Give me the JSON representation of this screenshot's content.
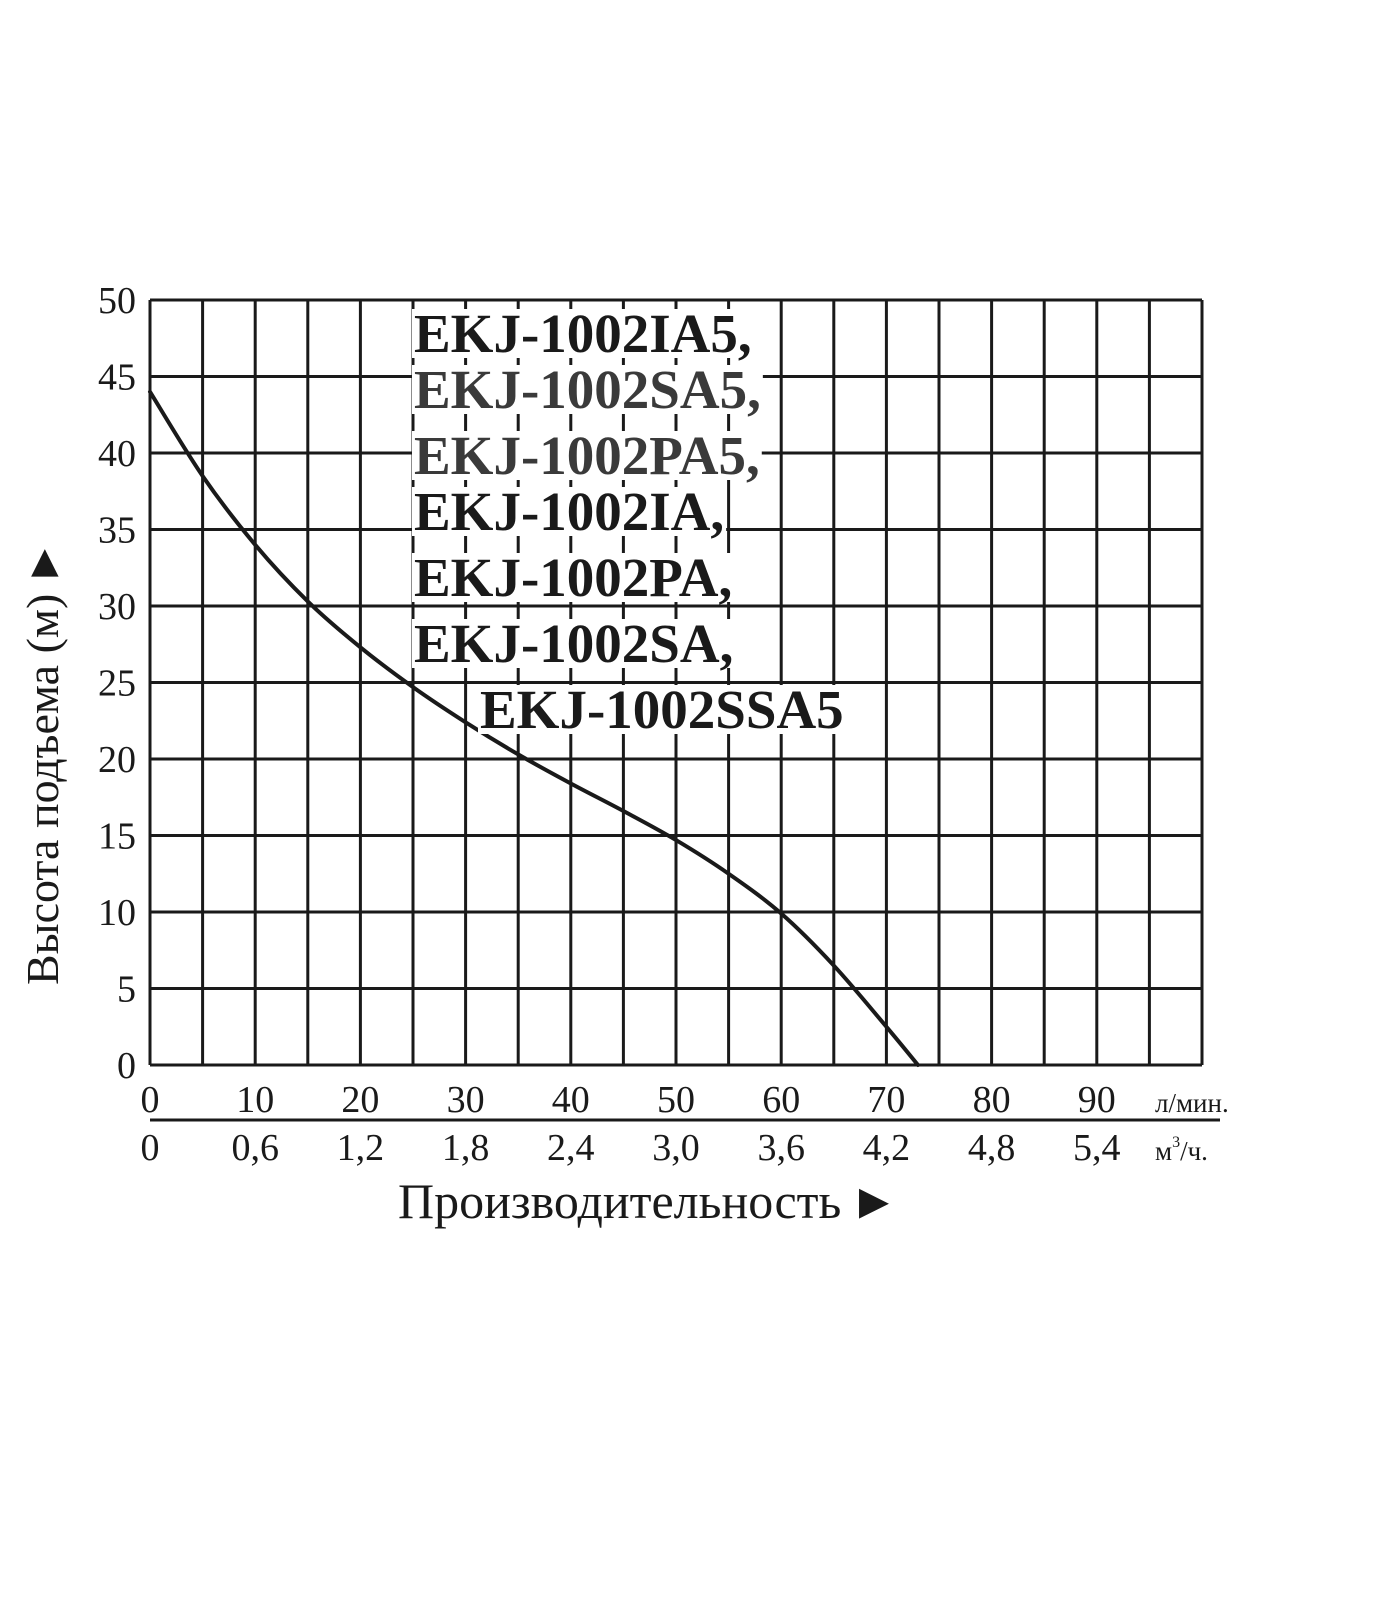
{
  "chart_data": {
    "type": "line",
    "title": "",
    "models": [
      "EKJ-1002IA5,",
      "EKJ-1002SA5,",
      "EKJ-1002PA5,",
      "EKJ-1002IA,",
      "EKJ-1002PA,",
      "EKJ-1002SA,",
      "EKJ-1002SSA5"
    ],
    "ylabel": "Высота подъема (м)",
    "ylabel_arrow": "►",
    "xlabel": "Производительность",
    "xlabel_arrow": "►",
    "x_unit": "л/мин.",
    "x2_unit_base": "м",
    "x2_unit_sup": "3",
    "x2_unit_tail": "/ч.",
    "ylim": [
      0,
      50
    ],
    "xlim": [
      0,
      100
    ],
    "y_ticks": [
      "0",
      "5",
      "10",
      "15",
      "20",
      "25",
      "30",
      "35",
      "40",
      "45",
      "50"
    ],
    "x_ticks": [
      "0",
      "10",
      "20",
      "30",
      "40",
      "50",
      "60",
      "70",
      "80",
      "90"
    ],
    "x2_ticks": [
      "0",
      "0,6",
      "1,2",
      "1,8",
      "2,4",
      "3,0",
      "3,6",
      "4,2",
      "4,8",
      "5,4"
    ],
    "grid": true,
    "series": [
      {
        "x": [
          0,
          5,
          10,
          15,
          20,
          25,
          30,
          35,
          40,
          45,
          50,
          55,
          60,
          65,
          70,
          73
        ],
        "y": [
          44,
          38.5,
          34,
          30.3,
          27.3,
          24.7,
          22.4,
          20.3,
          18.4,
          16.6,
          14.7,
          12.5,
          9.9,
          6.5,
          2.5,
          0
        ]
      }
    ]
  }
}
